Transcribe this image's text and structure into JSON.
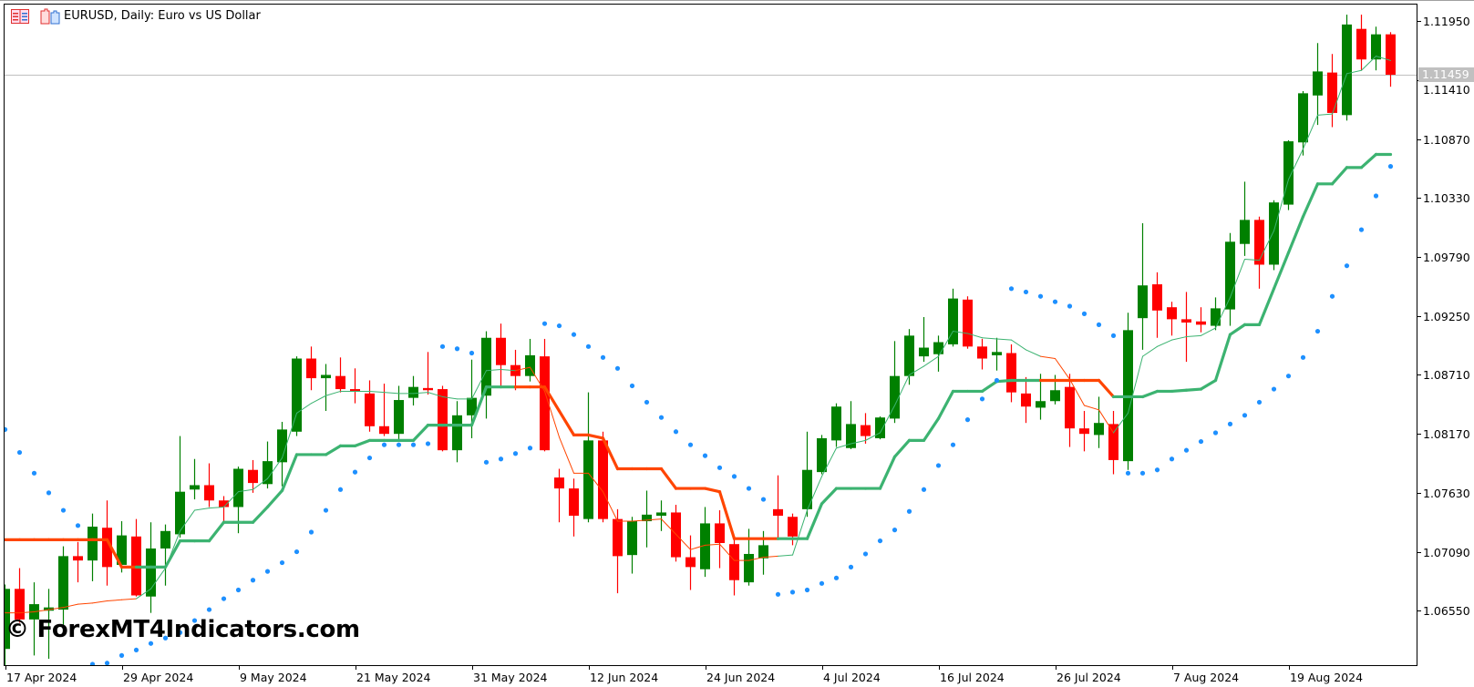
{
  "header": {
    "title": "EURUSD, Daily:  Euro vs US Dollar",
    "icons": [
      "chart-list-icon",
      "chart-window-icon"
    ]
  },
  "watermark": "© ForexMT4Indicators.com",
  "current_price": "1.11459",
  "colors": {
    "bull_candle": "#008000",
    "bear_candle": "#ff0000",
    "trend_up": "#3cb371",
    "trend_down": "#ff4500",
    "sar_dots": "#1e90ff",
    "price_line": "#c0c0c0"
  },
  "chart_data": {
    "type": "candlestick",
    "symbol": "EURUSD",
    "timeframe": "Daily",
    "ylim": [
      1.0606,
      1.1213
    ],
    "grid": false,
    "y_ticks": [
      "1.11950",
      "1.11410",
      "1.10870",
      "1.10330",
      "1.09790",
      "1.09250",
      "1.08710",
      "1.08170",
      "1.07630",
      "1.07090",
      "1.06550"
    ],
    "x_ticks": [
      {
        "label": "17 Apr 2024",
        "date": "2024-04-17"
      },
      {
        "label": "29 Apr 2024",
        "date": "2024-04-29"
      },
      {
        "label": "9 May 2024",
        "date": "2024-05-09"
      },
      {
        "label": "21 May 2024",
        "date": "2024-05-21"
      },
      {
        "label": "31 May 2024",
        "date": "2024-05-31"
      },
      {
        "label": "12 Jun 2024",
        "date": "2024-06-12"
      },
      {
        "label": "24 Jun 2024",
        "date": "2024-06-24"
      },
      {
        "label": "4 Jul 2024",
        "date": "2024-07-04"
      },
      {
        "label": "16 Jul 2024",
        "date": "2024-07-16"
      },
      {
        "label": "26 Jul 2024",
        "date": "2024-07-26"
      },
      {
        "label": "7 Aug 2024",
        "date": "2024-08-07"
      },
      {
        "label": "19 Aug 2024",
        "date": "2024-08-19"
      }
    ],
    "x": [
      "2024-04-17",
      "2024-04-18",
      "2024-04-19",
      "2024-04-22",
      "2024-04-23",
      "2024-04-24",
      "2024-04-25",
      "2024-04-26",
      "2024-04-29",
      "2024-04-30",
      "2024-05-01",
      "2024-05-02",
      "2024-05-03",
      "2024-05-06",
      "2024-05-07",
      "2024-05-08",
      "2024-05-09",
      "2024-05-10",
      "2024-05-13",
      "2024-05-14",
      "2024-05-15",
      "2024-05-16",
      "2024-05-17",
      "2024-05-20",
      "2024-05-21",
      "2024-05-22",
      "2024-05-23",
      "2024-05-24",
      "2024-05-27",
      "2024-05-28",
      "2024-05-29",
      "2024-05-30",
      "2024-05-31",
      "2024-06-03",
      "2024-06-04",
      "2024-06-05",
      "2024-06-06",
      "2024-06-07",
      "2024-06-10",
      "2024-06-11",
      "2024-06-12",
      "2024-06-13",
      "2024-06-14",
      "2024-06-17",
      "2024-06-18",
      "2024-06-19",
      "2024-06-20",
      "2024-06-21",
      "2024-06-24",
      "2024-06-25",
      "2024-06-26",
      "2024-06-27",
      "2024-06-28",
      "2024-07-01",
      "2024-07-02",
      "2024-07-03",
      "2024-07-04",
      "2024-07-05",
      "2024-07-08",
      "2024-07-09",
      "2024-07-10",
      "2024-07-11",
      "2024-07-12",
      "2024-07-15",
      "2024-07-16",
      "2024-07-17",
      "2024-07-18",
      "2024-07-19",
      "2024-07-22",
      "2024-07-23",
      "2024-07-24",
      "2024-07-25",
      "2024-07-26",
      "2024-07-29",
      "2024-07-30",
      "2024-07-31",
      "2024-08-01",
      "2024-08-02",
      "2024-08-05",
      "2024-08-06",
      "2024-08-07",
      "2024-08-08",
      "2024-08-09",
      "2024-08-12",
      "2024-08-13",
      "2024-08-14",
      "2024-08-15",
      "2024-08-16",
      "2024-08-19",
      "2024-08-20",
      "2024-08-21",
      "2024-08-22",
      "2024-08-23",
      "2024-08-26",
      "2024-08-27",
      "2024-08-28"
    ],
    "ohlc": [
      [
        1.062,
        1.0679,
        1.0601,
        1.0675
      ],
      [
        1.0675,
        1.0694,
        1.0644,
        1.0647
      ],
      [
        1.0647,
        1.0681,
        1.0614,
        1.0661
      ],
      [
        1.0655,
        1.0675,
        1.0611,
        1.0658
      ],
      [
        1.0656,
        1.0714,
        1.0642,
        1.0705
      ],
      [
        1.0705,
        1.0718,
        1.0681,
        1.0701
      ],
      [
        1.0701,
        1.0744,
        1.0682,
        1.0732
      ],
      [
        1.0731,
        1.0756,
        1.0678,
        1.0695
      ],
      [
        1.0697,
        1.0737,
        1.069,
        1.0724
      ],
      [
        1.0723,
        1.0739,
        1.0668,
        1.0669
      ],
      [
        1.0668,
        1.0736,
        1.0653,
        1.0712
      ],
      [
        1.0712,
        1.0734,
        1.0678,
        1.0728
      ],
      [
        1.0725,
        1.0815,
        1.0722,
        1.0764
      ],
      [
        1.0766,
        1.0794,
        1.0757,
        1.077
      ],
      [
        1.077,
        1.079,
        1.075,
        1.0756
      ],
      [
        1.0756,
        1.076,
        1.0737,
        1.075
      ],
      [
        1.075,
        1.0787,
        1.0726,
        1.0785
      ],
      [
        1.0784,
        1.0793,
        1.0763,
        1.0772
      ],
      [
        1.0771,
        1.081,
        1.0767,
        1.0792
      ],
      [
        1.0791,
        1.0828,
        1.0769,
        1.0821
      ],
      [
        1.0819,
        1.0888,
        1.0815,
        1.0886
      ],
      [
        1.0886,
        1.0897,
        1.0857,
        1.0868
      ],
      [
        1.0868,
        1.0881,
        1.0838,
        1.0871
      ],
      [
        1.087,
        1.0887,
        1.0855,
        1.0858
      ],
      [
        1.0858,
        1.0877,
        1.0845,
        1.0856
      ],
      [
        1.0854,
        1.0866,
        1.0819,
        1.0824
      ],
      [
        1.0824,
        1.0863,
        1.0815,
        1.0817
      ],
      [
        1.0817,
        1.0861,
        1.0811,
        1.0848
      ],
      [
        1.085,
        1.087,
        1.0843,
        1.086
      ],
      [
        1.0859,
        1.0892,
        1.0853,
        1.0857
      ],
      [
        1.0858,
        1.0861,
        1.0801,
        1.0802
      ],
      [
        1.0802,
        1.0847,
        1.0791,
        1.0834
      ],
      [
        1.0834,
        1.0885,
        1.0813,
        1.085
      ],
      [
        1.0852,
        1.0911,
        1.0831,
        1.0905
      ],
      [
        1.0905,
        1.0918,
        1.0861,
        1.088
      ],
      [
        1.088,
        1.0894,
        1.0857,
        1.087
      ],
      [
        1.087,
        1.0904,
        1.0865,
        1.0889
      ],
      [
        1.0888,
        1.0904,
        1.0801,
        1.0802
      ],
      [
        1.0777,
        1.0785,
        1.0736,
        1.0767
      ],
      [
        1.0767,
        1.0776,
        1.0723,
        1.0742
      ],
      [
        1.0739,
        1.0855,
        1.0736,
        1.0811
      ],
      [
        1.0811,
        1.0819,
        1.0736,
        1.0739
      ],
      [
        1.0739,
        1.0748,
        1.0671,
        1.0705
      ],
      [
        1.0706,
        1.0741,
        1.0689,
        1.0737
      ],
      [
        1.0737,
        1.0765,
        1.0713,
        1.0743
      ],
      [
        1.0742,
        1.0756,
        1.0728,
        1.0745
      ],
      [
        1.0745,
        1.0752,
        1.07,
        1.0704
      ],
      [
        1.0704,
        1.0724,
        1.0674,
        1.0695
      ],
      [
        1.0693,
        1.075,
        1.0686,
        1.0735
      ],
      [
        1.0735,
        1.0747,
        1.0694,
        1.0717
      ],
      [
        1.0716,
        1.072,
        1.0669,
        1.0683
      ],
      [
        1.0681,
        1.073,
        1.0678,
        1.0707
      ],
      [
        1.0703,
        1.0728,
        1.0688,
        1.0715
      ],
      [
        1.0748,
        1.0779,
        1.0721,
        1.0742
      ],
      [
        1.0741,
        1.0744,
        1.0715,
        1.0723
      ],
      [
        1.0748,
        1.0819,
        1.0741,
        1.0784
      ],
      [
        1.0782,
        1.0816,
        1.078,
        1.0813
      ],
      [
        1.0811,
        1.0845,
        1.0805,
        1.0842
      ],
      [
        1.0804,
        1.0847,
        1.0803,
        1.0826
      ],
      [
        1.0825,
        1.0836,
        1.0808,
        1.0815
      ],
      [
        1.0813,
        1.0833,
        1.0812,
        1.0832
      ],
      [
        1.0831,
        1.0902,
        1.0827,
        1.087
      ],
      [
        1.087,
        1.0913,
        1.0862,
        1.0907
      ],
      [
        1.0888,
        1.0924,
        1.0883,
        1.0896
      ],
      [
        1.089,
        1.0907,
        1.0874,
        1.0901
      ],
      [
        1.0899,
        1.095,
        1.0897,
        1.0941
      ],
      [
        1.094,
        1.0943,
        1.0895,
        1.0897
      ],
      [
        1.0897,
        1.0904,
        1.0876,
        1.0886
      ],
      [
        1.0889,
        1.0905,
        1.0875,
        1.0892
      ],
      [
        1.0891,
        1.0899,
        1.0846,
        1.0855
      ],
      [
        1.0854,
        1.0869,
        1.0827,
        1.0842
      ],
      [
        1.0841,
        1.0872,
        1.083,
        1.0847
      ],
      [
        1.0847,
        1.0871,
        1.0844,
        1.0857
      ],
      [
        1.086,
        1.0872,
        1.0805,
        1.0822
      ],
      [
        1.0822,
        1.0838,
        1.0801,
        1.0817
      ],
      [
        1.0816,
        1.0851,
        1.0804,
        1.0827
      ],
      [
        1.0826,
        1.0838,
        1.078,
        1.0793
      ],
      [
        1.0792,
        1.0928,
        1.0784,
        1.0912
      ],
      [
        1.0923,
        1.101,
        1.0894,
        1.0953
      ],
      [
        1.0954,
        1.0965,
        1.0905,
        1.093
      ],
      [
        1.0933,
        1.0938,
        1.0907,
        1.0922
      ],
      [
        1.0922,
        1.0947,
        1.0883,
        1.0919
      ],
      [
        1.092,
        1.0933,
        1.091,
        1.0917
      ],
      [
        1.0916,
        1.0942,
        1.0912,
        1.0932
      ],
      [
        1.0931,
        1.1001,
        1.0916,
        1.0993
      ],
      [
        1.0991,
        1.1048,
        1.098,
        1.1013
      ],
      [
        1.1013,
        1.1016,
        1.095,
        1.0972
      ],
      [
        1.0972,
        1.1031,
        1.0967,
        1.1029
      ],
      [
        1.1027,
        1.1086,
        1.1022,
        1.1085
      ],
      [
        1.1084,
        1.1131,
        1.1072,
        1.1129
      ],
      [
        1.1127,
        1.1175,
        1.11,
        1.1149
      ],
      [
        1.1148,
        1.1165,
        1.1098,
        1.1111
      ],
      [
        1.1109,
        1.1201,
        1.1104,
        1.1192
      ],
      [
        1.1188,
        1.1201,
        1.115,
        1.116
      ],
      [
        1.116,
        1.119,
        1.115,
        1.1183
      ],
      [
        1.1183,
        1.1185,
        1.1135,
        1.1146
      ]
    ],
    "trend": [
      "down",
      "down",
      "down",
      "down",
      "down",
      "down",
      "down",
      "down",
      "down",
      "down",
      "up",
      "up",
      "up",
      "up",
      "up",
      "up",
      "up",
      "up",
      "up",
      "up",
      "up",
      "up",
      "up",
      "up",
      "up",
      "up",
      "up",
      "up",
      "up",
      "up",
      "up",
      "up",
      "up",
      "up",
      "up",
      "up",
      "down",
      "down",
      "down",
      "down",
      "down",
      "down",
      "down",
      "down",
      "down",
      "down",
      "down",
      "down",
      "down",
      "down",
      "down",
      "down",
      "down",
      "down",
      "up",
      "up",
      "up",
      "up",
      "up",
      "up",
      "up",
      "up",
      "up",
      "up",
      "up",
      "up",
      "up",
      "up",
      "up",
      "up",
      "up",
      "up",
      "down",
      "down",
      "down",
      "down",
      "down",
      "up",
      "up",
      "up",
      "up",
      "up",
      "up",
      "up",
      "up",
      "up",
      "up",
      "up",
      "up",
      "up",
      "up",
      "up",
      "up",
      "up",
      "up",
      "up"
    ],
    "trend_line": [
      1.072,
      1.072,
      1.072,
      1.072,
      1.072,
      1.072,
      1.072,
      1.072,
      1.0695,
      1.0695,
      1.0695,
      1.0695,
      1.0719,
      1.0719,
      1.0719,
      1.0736,
      1.0736,
      1.0736,
      1.075,
      1.0765,
      1.0798,
      1.0798,
      1.0798,
      1.0806,
      1.0806,
      1.0811,
      1.0811,
      1.0811,
      1.0811,
      1.0825,
      1.0825,
      1.0825,
      1.0825,
      1.086,
      1.086,
      1.086,
      1.086,
      1.086,
      1.0838,
      1.0816,
      1.0816,
      1.0813,
      1.0785,
      1.0785,
      1.0785,
      1.0785,
      1.0767,
      1.0767,
      1.0767,
      1.0764,
      1.0721,
      1.0721,
      1.0721,
      1.0721,
      1.0721,
      1.0721,
      1.0753,
      1.0767,
      1.0767,
      1.0767,
      1.0767,
      1.0796,
      1.0811,
      1.0811,
      1.0831,
      1.0856,
      1.0856,
      1.0856,
      1.0865,
      1.0866,
      1.0866,
      1.0866,
      1.0866,
      1.0866,
      1.0866,
      1.0866,
      1.0851,
      1.0851,
      1.0851,
      1.0856,
      1.0856,
      1.0857,
      1.0858,
      1.0866,
      1.0908,
      1.0917,
      1.0917,
      1.095,
      1.0983,
      1.1016,
      1.1046,
      1.1046,
      1.1061,
      1.1061,
      1.1073,
      1.1073
    ],
    "signal_line": [
      1.0653,
      1.0653,
      1.0654,
      1.0656,
      1.0658,
      1.0661,
      1.0662,
      1.0664,
      1.0665,
      1.0666,
      1.0675,
      1.0694,
      1.0728,
      1.0747,
      1.0749,
      1.075,
      1.0764,
      1.0766,
      1.0776,
      1.0795,
      1.0836,
      1.0845,
      1.0852,
      1.0856,
      1.0856,
      1.0856,
      1.0855,
      1.0854,
      1.0854,
      1.0855,
      1.0851,
      1.0849,
      1.0849,
      1.0875,
      1.0876,
      1.0875,
      1.0878,
      1.0856,
      1.0814,
      1.0781,
      1.0781,
      1.0764,
      1.0737,
      1.0737,
      1.0738,
      1.0739,
      1.0725,
      1.0711,
      1.0715,
      1.0716,
      1.0701,
      1.0701,
      1.0704,
      1.0705,
      1.0706,
      1.0747,
      1.0778,
      1.0804,
      1.0808,
      1.0811,
      1.0818,
      1.0843,
      1.0871,
      1.0879,
      1.0888,
      1.0911,
      1.0909,
      1.0905,
      1.0904,
      1.0903,
      1.0894,
      1.0888,
      1.0886,
      1.0867,
      1.0843,
      1.0839,
      1.0818,
      1.0836,
      1.0888,
      1.0897,
      1.0903,
      1.0906,
      1.0907,
      1.0914,
      1.0942,
      1.0977,
      1.0976,
      1.1003,
      1.105,
      1.1078,
      1.1109,
      1.111,
      1.1147,
      1.115,
      1.1163,
      1.1159
    ],
    "parabolic_sar": [
      1.0821,
      1.08,
      1.0781,
      1.0763,
      1.0747,
      1.0733,
      1.0606,
      1.0607,
      1.0614,
      1.0619,
      1.0625,
      1.063,
      1.0635,
      1.0646,
      1.0656,
      1.0666,
      1.0674,
      1.0683,
      1.0691,
      1.0699,
      1.0709,
      1.0727,
      1.0747,
      1.0766,
      1.0782,
      1.0795,
      1.0807,
      1.0807,
      1.0807,
      1.0808,
      1.0897,
      1.0895,
      1.0891,
      1.0791,
      1.0794,
      1.0799,
      1.0804,
      1.0918,
      1.0916,
      1.0908,
      1.0897,
      1.0887,
      1.0877,
      1.0861,
      1.0846,
      1.0832,
      1.0819,
      1.0807,
      1.0797,
      1.0786,
      1.0778,
      1.0767,
      1.0757,
      1.067,
      1.0672,
      1.0674,
      1.068,
      1.0685,
      1.0695,
      1.0707,
      1.0719,
      1.0729,
      1.0746,
      1.0766,
      1.0788,
      1.0807,
      1.083,
      1.0849,
      1.0866,
      1.095,
      1.0947,
      1.0943,
      1.0938,
      1.0934,
      1.0927,
      1.0917,
      1.0907,
      1.0781,
      1.0781,
      1.0784,
      1.0794,
      1.0802,
      1.081,
      1.0818,
      1.0826,
      1.0834,
      1.0846,
      1.0858,
      1.087,
      1.0887,
      1.0911,
      1.0943,
      1.0971,
      1.1004,
      1.1035,
      1.1062
    ]
  }
}
